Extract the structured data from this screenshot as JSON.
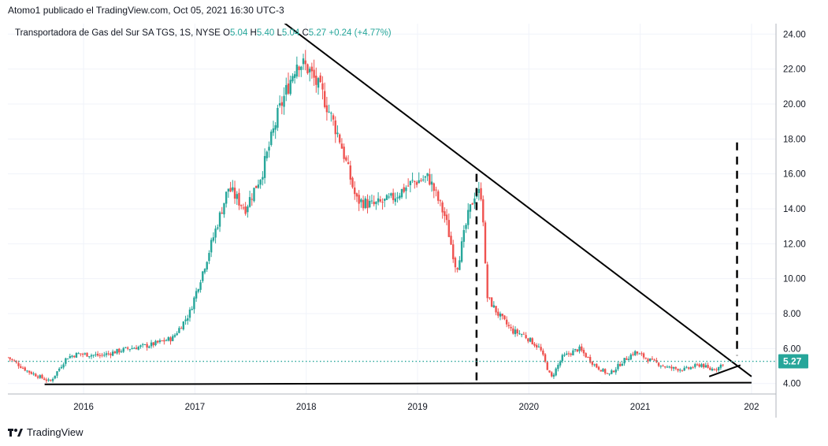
{
  "header": {
    "published_line": "Atomo1 publicado el TradingView.com, Oct 05, 2021 16:30 UTC-3"
  },
  "legend": {
    "symbol": "Transportadora de Gas del Sur SA TGS, 1S, NYSE",
    "o_label": "O",
    "o_value": "5.04",
    "h_label": "H",
    "h_value": "5.40",
    "l_label": "L",
    "l_value": "5.04",
    "c_label": "C",
    "c_value": "5.27",
    "change": "+0.24 (+4.77%)"
  },
  "price_badge": "5.27",
  "footer": {
    "brand": "TradingView",
    "logo_icon": "tradingview-logo-icon"
  },
  "colors": {
    "up": "#26a69a",
    "down": "#ef5350",
    "badge": "#26a69a",
    "grid": "#f0f3fa",
    "axis_text": "#131722",
    "trendline": "#000000"
  },
  "chart_data": {
    "type": "candlestick",
    "interval": "1S",
    "exchange": "NYSE",
    "y_ticks": [
      "4.00",
      "6.00",
      "8.00",
      "10.00",
      "12.00",
      "14.00",
      "16.00",
      "18.00",
      "20.00",
      "22.00",
      "24.00"
    ],
    "x_ticks": [
      "2016",
      "2017",
      "2018",
      "2019",
      "2020",
      "2021",
      "202"
    ],
    "ylim": [
      3.4,
      24.6
    ],
    "xlim": [
      2015.32,
      2022.22
    ],
    "last_close": 5.27,
    "close_path": [
      {
        "t": 2015.32,
        "c": 5.5
      },
      {
        "t": 2015.5,
        "c": 4.7
      },
      {
        "t": 2015.7,
        "c": 4.1
      },
      {
        "t": 2015.85,
        "c": 5.5
      },
      {
        "t": 2015.95,
        "c": 5.7
      },
      {
        "t": 2016.15,
        "c": 5.6
      },
      {
        "t": 2016.4,
        "c": 6.0
      },
      {
        "t": 2016.6,
        "c": 6.2
      },
      {
        "t": 2016.8,
        "c": 6.6
      },
      {
        "t": 2016.95,
        "c": 8.0
      },
      {
        "t": 2017.1,
        "c": 11.0
      },
      {
        "t": 2017.3,
        "c": 15.2
      },
      {
        "t": 2017.45,
        "c": 14.0
      },
      {
        "t": 2017.6,
        "c": 16.0
      },
      {
        "t": 2017.75,
        "c": 19.5
      },
      {
        "t": 2017.92,
        "c": 22.5
      },
      {
        "t": 2018.02,
        "c": 22.0
      },
      {
        "t": 2018.15,
        "c": 20.5
      },
      {
        "t": 2018.3,
        "c": 18.0
      },
      {
        "t": 2018.45,
        "c": 14.5
      },
      {
        "t": 2018.6,
        "c": 14.2
      },
      {
        "t": 2018.75,
        "c": 14.5
      },
      {
        "t": 2018.95,
        "c": 15.5
      },
      {
        "t": 2019.1,
        "c": 15.8
      },
      {
        "t": 2019.25,
        "c": 13.5
      },
      {
        "t": 2019.35,
        "c": 10.5
      },
      {
        "t": 2019.45,
        "c": 13.5
      },
      {
        "t": 2019.52,
        "c": 15.0
      },
      {
        "t": 2019.58,
        "c": 14.8
      },
      {
        "t": 2019.62,
        "c": 9.0
      },
      {
        "t": 2019.72,
        "c": 8.0
      },
      {
        "t": 2019.85,
        "c": 7.0
      },
      {
        "t": 2019.95,
        "c": 6.8
      },
      {
        "t": 2020.1,
        "c": 6.0
      },
      {
        "t": 2020.2,
        "c": 4.3
      },
      {
        "t": 2020.3,
        "c": 5.5
      },
      {
        "t": 2020.45,
        "c": 6.0
      },
      {
        "t": 2020.6,
        "c": 5.0
      },
      {
        "t": 2020.72,
        "c": 4.5
      },
      {
        "t": 2020.85,
        "c": 5.3
      },
      {
        "t": 2020.95,
        "c": 5.8
      },
      {
        "t": 2021.1,
        "c": 5.3
      },
      {
        "t": 2021.25,
        "c": 4.9
      },
      {
        "t": 2021.4,
        "c": 4.8
      },
      {
        "t": 2021.55,
        "c": 5.1
      },
      {
        "t": 2021.62,
        "c": 4.8
      },
      {
        "t": 2021.7,
        "c": 4.9
      },
      {
        "t": 2021.76,
        "c": 5.27
      }
    ],
    "drawings": [
      {
        "kind": "trendline",
        "from": {
          "t": 2017.77,
          "p": 24.8
        },
        "to": {
          "t": 2022.0,
          "p": 4.4
        }
      },
      {
        "kind": "trendline",
        "from": {
          "t": 2015.65,
          "p": 3.95
        },
        "to": {
          "t": 2022.0,
          "p": 4.05
        }
      },
      {
        "kind": "trendline",
        "from": {
          "t": 2021.62,
          "p": 4.4
        },
        "to": {
          "t": 2021.9,
          "p": 5.05
        }
      },
      {
        "kind": "dashed-vertical",
        "t": 2019.53,
        "from_p": 16.0,
        "to_p": 3.9
      },
      {
        "kind": "dashed-vertical",
        "t": 2021.87,
        "from_p": 17.8,
        "to_p": 5.6
      }
    ]
  }
}
